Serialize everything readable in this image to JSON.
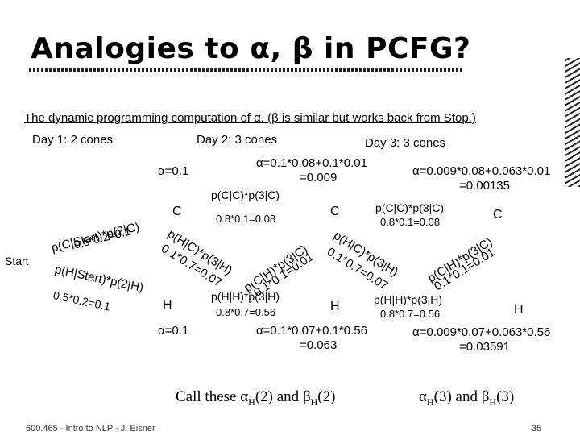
{
  "slide": {
    "title": "Analogies to α, β in PCFG?",
    "intro": "The dynamic programming computation of α.  (β is similar but works back from Stop.)",
    "footer": "600.465 - Intro to NLP - J. Eisner",
    "page": "35"
  },
  "days": {
    "day1": "Day 1: 2 cones",
    "day2": "Day 2: 3 cones",
    "day3": "Day 3: 3 cones"
  },
  "start": {
    "label": "Start",
    "edge_c": "p(C|Start)*p(2|C)",
    "edge_c_val": "0.5*0.2=0.1",
    "edge_h": "p(H|Start)*p(2|H)",
    "edge_h_val": "0.5*0.2=0.1"
  },
  "day2": {
    "alpha_c": "α=0.1",
    "alpha_h": "α=0.1",
    "node_c": "C",
    "node_h": "H",
    "cc": "p(C|C)*p(3|C)",
    "cc_val": "0.8*0.1=0.08",
    "hh": "p(H|H)*p(3|H)",
    "hh_val": "0.8*0.7=0.56",
    "ch": "p(H|C)*p(3|H)",
    "ch_val": "0.1*0.7=0.07",
    "hc": "p(C|H)*p(3|C)",
    "hc_val": "0.1*0.1=0.01"
  },
  "day3": {
    "alpha_c_expr": "α=0.1*0.08+0.1*0.01",
    "alpha_c_val": "=0.009",
    "alpha_h_expr": "α=0.1*0.07+0.1*0.56",
    "alpha_h_val": "=0.063",
    "node_c": "C",
    "node_h": "H",
    "cc": "p(C|C)*p(3|C)",
    "cc_val": "0.8*0.1=0.08",
    "hh": "p(H|H)*p(3|H)",
    "hh_val": "0.8*0.7=0.56",
    "ch": "p(H|C)*p(3|H)",
    "ch_val": "0.1*0.7=0.07",
    "hc": "p(C|H)*p(3|C)",
    "hc_val": "0.1*0.1=0.01"
  },
  "day4": {
    "alpha_c_expr": "α=0.009*0.08+0.063*0.01",
    "alpha_c_val": "=0.00135",
    "alpha_h_expr": "α=0.009*0.07+0.063*0.56",
    "alpha_h_val": "=0.03591",
    "node_c": "C",
    "node_h": "H"
  },
  "callout": {
    "left_prefix": "Call these ",
    "alpha": "α",
    "sub_h": "H",
    "arg2": "(2)",
    "and": " and ",
    "beta": "β",
    "arg3": "(3)"
  }
}
